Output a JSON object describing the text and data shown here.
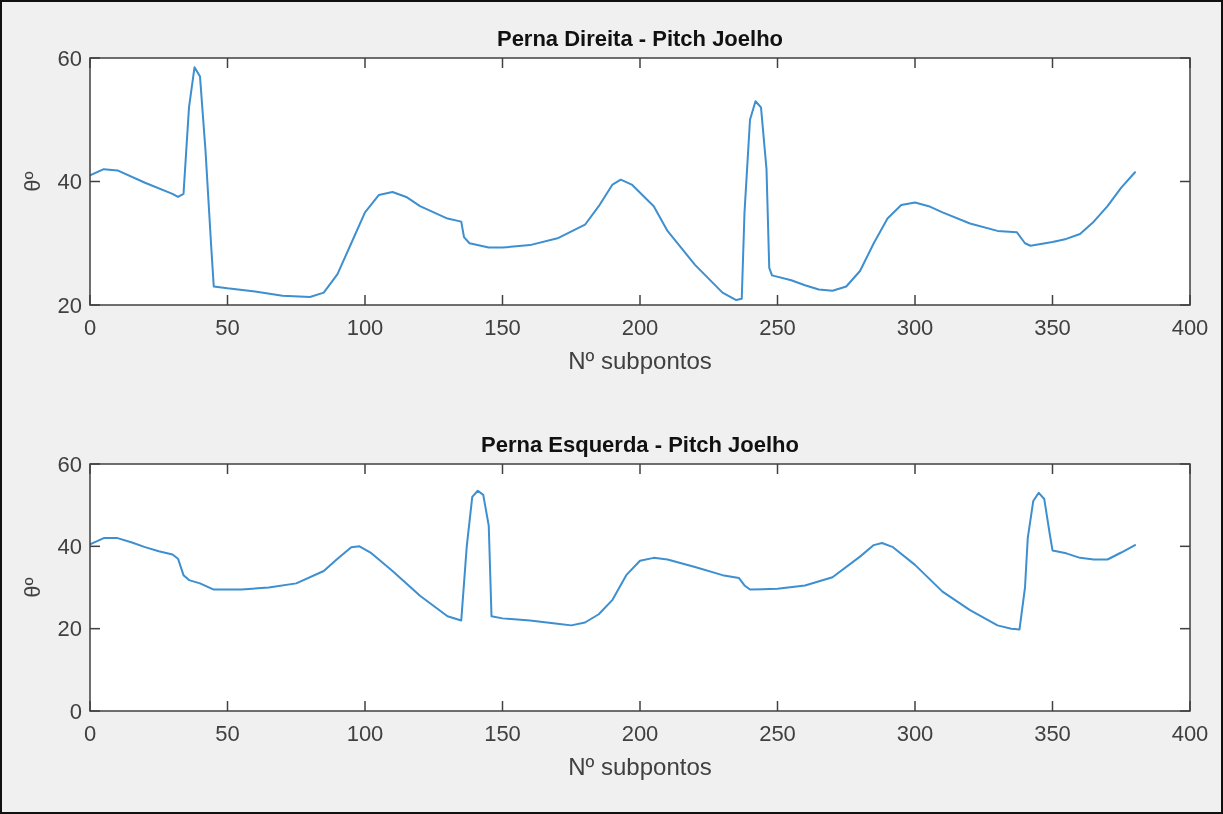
{
  "chart_data": [
    {
      "type": "line",
      "title": "Perna Direita - Pitch Joelho",
      "xlabel": "Nº subpontos",
      "ylabel": "θº",
      "xlim": [
        0,
        400
      ],
      "xticks": [
        0,
        50,
        100,
        150,
        200,
        250,
        300,
        350,
        400
      ],
      "ylim": [
        20,
        60
      ],
      "yticks": [
        20,
        40,
        60
      ],
      "series": [
        {
          "color": "#3d8fd0",
          "x": [
            0,
            5,
            10,
            20,
            30,
            32,
            34,
            36,
            38,
            40,
            42,
            44,
            45,
            50,
            60,
            70,
            80,
            85,
            90,
            95,
            100,
            105,
            110,
            115,
            120,
            130,
            135,
            136,
            138,
            145,
            150,
            160,
            170,
            180,
            185,
            190,
            193,
            197,
            205,
            210,
            220,
            230,
            235,
            237,
            238,
            240,
            242,
            244,
            246,
            247,
            248,
            255,
            260,
            265,
            270,
            275,
            280,
            285,
            290,
            295,
            300,
            305,
            310,
            320,
            330,
            337,
            340,
            342,
            350,
            355,
            360,
            365,
            370,
            375,
            380
          ],
          "values": [
            41,
            42,
            41.8,
            39.8,
            38,
            37.5,
            38,
            52,
            58.5,
            57,
            45,
            30,
            23,
            22.7,
            22.2,
            21.5,
            21.3,
            22,
            25,
            30,
            35,
            37.8,
            38.3,
            37.5,
            36,
            34,
            33.5,
            31,
            30,
            29.3,
            29.3,
            29.7,
            30.8,
            33,
            36,
            39.5,
            40.3,
            39.5,
            36,
            32,
            26.5,
            22,
            20.8,
            21,
            35,
            50,
            53,
            52,
            42,
            26,
            24.8,
            24,
            23.2,
            22.5,
            22.3,
            23,
            25.5,
            30,
            34,
            36.2,
            36.6,
            36,
            35,
            33.2,
            32,
            31.8,
            30,
            29.6,
            30.2,
            30.7,
            31.5,
            33.5,
            36,
            39,
            41.5
          ]
        }
      ]
    },
    {
      "type": "line",
      "title": "Perna Esquerda - Pitch Joelho",
      "xlabel": "Nº subpontos",
      "ylabel": "θº",
      "xlim": [
        0,
        400
      ],
      "xticks": [
        0,
        50,
        100,
        150,
        200,
        250,
        300,
        350,
        400
      ],
      "ylim": [
        0,
        60
      ],
      "yticks": [
        0,
        20,
        40,
        60
      ],
      "series": [
        {
          "color": "#3d8fd0",
          "x": [
            0,
            5,
            10,
            15,
            20,
            25,
            30,
            32,
            34,
            36,
            40,
            45,
            55,
            65,
            75,
            85,
            90,
            95,
            98,
            102,
            110,
            120,
            130,
            135,
            137,
            139,
            141,
            143,
            145,
            146,
            150,
            160,
            170,
            175,
            180,
            185,
            190,
            195,
            200,
            205,
            210,
            220,
            230,
            236,
            238,
            240,
            250,
            260,
            270,
            280,
            285,
            288,
            292,
            300,
            310,
            320,
            330,
            335,
            338,
            340,
            341,
            343,
            345,
            347,
            349,
            350,
            355,
            360,
            365,
            370,
            375,
            380
          ],
          "values": [
            40.5,
            42,
            42,
            41,
            39.8,
            38.8,
            38,
            37,
            33,
            31.8,
            31,
            29.5,
            29.5,
            30,
            31,
            34,
            37,
            39.8,
            40,
            38.5,
            34,
            28,
            23,
            22,
            40,
            52,
            53.5,
            52.5,
            45,
            23,
            22.5,
            22,
            21.2,
            20.8,
            21.5,
            23.5,
            27,
            33,
            36.5,
            37.2,
            36.8,
            35,
            33,
            32.3,
            30.5,
            29.5,
            29.7,
            30.5,
            32.5,
            37.5,
            40.3,
            40.8,
            39.8,
            35.5,
            29,
            24.5,
            20.8,
            20,
            19.8,
            30,
            42,
            51,
            53,
            51.5,
            43,
            39,
            38.3,
            37.2,
            36.8,
            36.8,
            38.5,
            40.3
          ]
        }
      ]
    }
  ]
}
